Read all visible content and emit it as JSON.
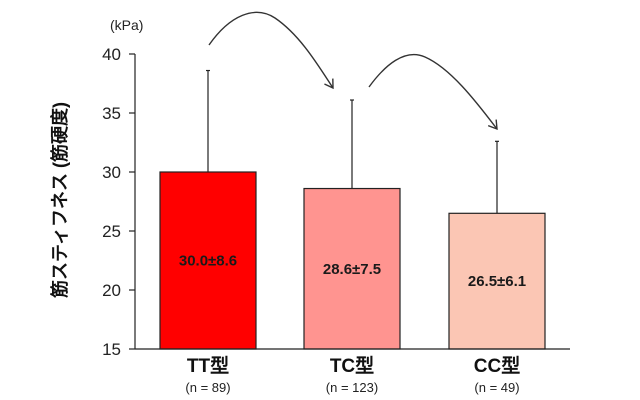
{
  "chart_data": {
    "type": "bar",
    "title": "",
    "xlabel": "",
    "ylabel": "筋スティフネス (筋硬度)",
    "unit": "(kPa)",
    "ylim": [
      15,
      40
    ],
    "yticks": [
      15,
      20,
      25,
      30,
      35,
      40
    ],
    "grid": false,
    "categories": [
      "TT型",
      "TC型",
      "CC型"
    ],
    "n_labels": [
      "(n = 89)",
      "(n = 123)",
      "(n = 49)"
    ],
    "values": [
      30.0,
      28.6,
      26.5
    ],
    "sd": [
      8.6,
      7.5,
      6.1
    ],
    "value_labels": [
      "30.0±8.6",
      "28.6±7.5",
      "26.5±6.1"
    ],
    "colors": [
      "#ff0000",
      "#ff9490",
      "#fbc6b4"
    ],
    "annotations": [
      "arrow TT→TC",
      "arrow TC→CC"
    ]
  }
}
